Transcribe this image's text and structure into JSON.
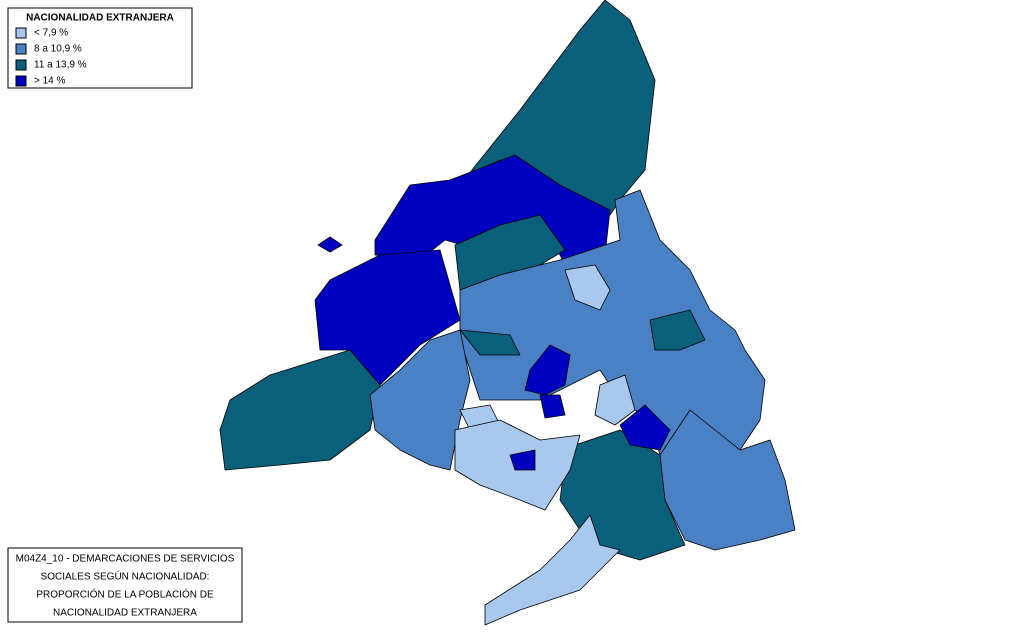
{
  "legend": {
    "title": "NACIONALIDAD EXTRANJERA",
    "items": [
      {
        "label": "< 7,9 %",
        "color": "#a8c8ee"
      },
      {
        "label": "8 a 10,9 %",
        "color": "#4a80c4"
      },
      {
        "label": "11 a 13,9 %",
        "color": "#0a5f7a"
      },
      {
        "label": "> 14 %",
        "color": "#0000c0"
      }
    ]
  },
  "caption": {
    "lines": [
      "M04Z4_10 - DEMARCACIONES DE SERVICIOS",
      "SOCIALES SEGÚN NACIONALIDAD:",
      "PROPORCIÓN DE LA POBLACIÓN DE",
      "NACIONALIDAD EXTRANJERA"
    ]
  }
}
